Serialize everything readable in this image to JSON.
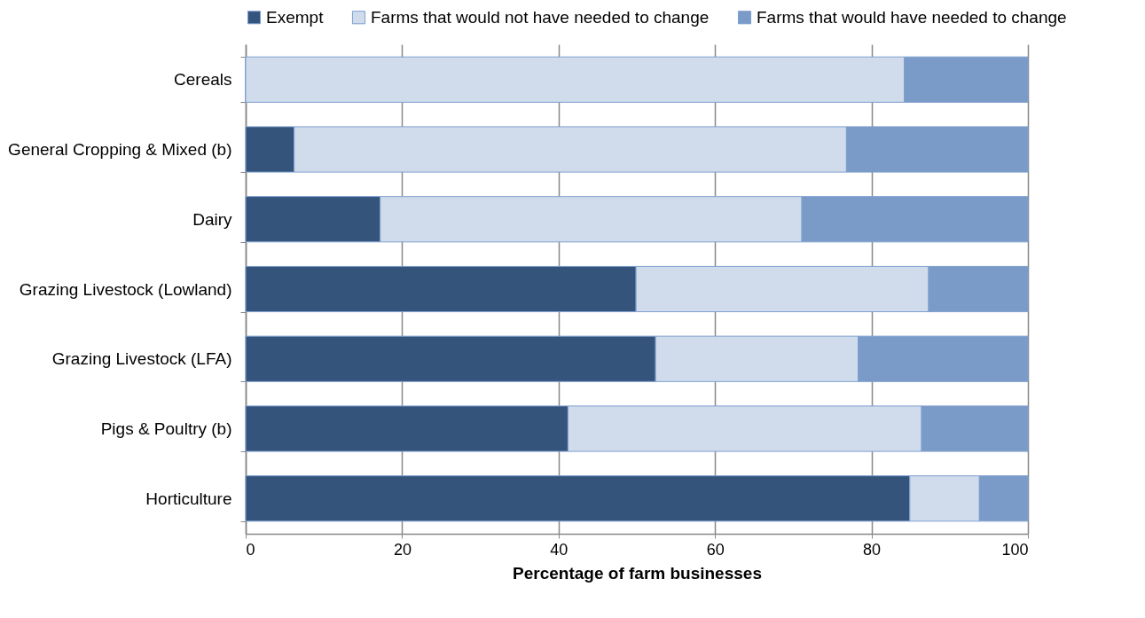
{
  "chart_data": {
    "type": "bar",
    "orientation": "horizontal",
    "stacked": true,
    "categories": [
      "Cereals",
      "General Cropping & Mixed (b)",
      "Dairy",
      "Grazing Livestock (Lowland)",
      "Grazing Livestock (LFA)",
      "Pigs & Poultry (b)",
      "Horticulture"
    ],
    "series": [
      {
        "name": "Exempt",
        "color": "#34547c",
        "values": [
          0,
          6.2,
          17.2,
          49.9,
          52.4,
          41.2,
          84.9
        ]
      },
      {
        "name": "Farms that would not have needed to change",
        "color": "#d0dcec",
        "values": [
          84.2,
          70.6,
          53.9,
          37.4,
          25.9,
          45.2,
          8.9
        ]
      },
      {
        "name": "Farms that would have needed to change",
        "color": "#7a9bc8",
        "values": [
          15.8,
          23.2,
          28.9,
          12.7,
          21.7,
          13.6,
          6.2
        ]
      }
    ],
    "xlabel": "Percentage of farm businesses",
    "xlim": [
      0,
      100
    ],
    "xticks": [
      0,
      20,
      40,
      60,
      80,
      100
    ],
    "grid": "x",
    "legend": "top"
  }
}
